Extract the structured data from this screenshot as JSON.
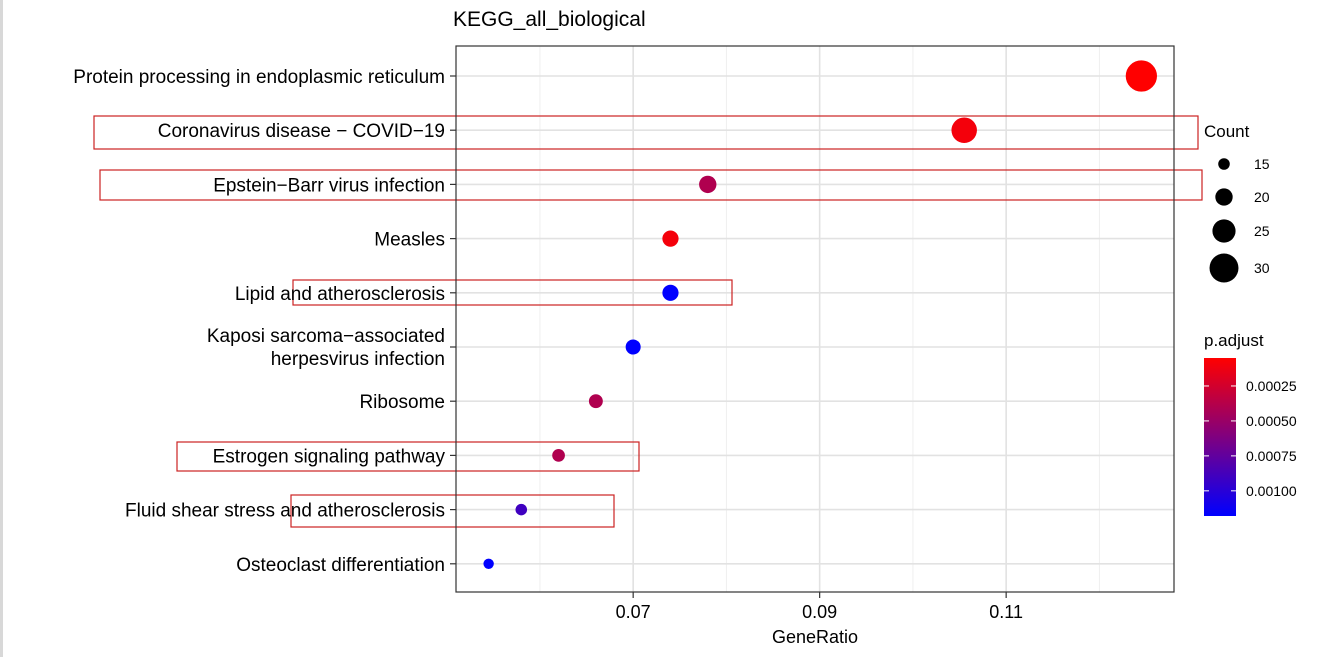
{
  "chart_data": {
    "type": "scatter",
    "title": "KEGG_all_biological",
    "xlabel": "GeneRatio",
    "ylabel": "",
    "xlim": [
      0.051,
      0.128
    ],
    "x_ticks": [
      "0.07",
      "0.09",
      "0.11"
    ],
    "x_tick_values": [
      0.07,
      0.09,
      0.11
    ],
    "grid": true,
    "legend_position": "right",
    "points": [
      {
        "term": "Protein processing in endoplasmic reticulum",
        "gene_ratio": 0.1245,
        "count": 32,
        "p_adjust": 5e-05,
        "highlighted": false
      },
      {
        "term": "Coronavirus disease − COVID−19",
        "gene_ratio": 0.1055,
        "count": 27,
        "p_adjust": 0.0001,
        "highlighted": true
      },
      {
        "term": "Epstein−Barr virus infection",
        "gene_ratio": 0.078,
        "count": 20,
        "p_adjust": 0.0004,
        "highlighted": true
      },
      {
        "term": "Measles",
        "gene_ratio": 0.074,
        "count": 19,
        "p_adjust": 0.0001,
        "highlighted": false
      },
      {
        "term": "Lipid and atherosclerosis",
        "gene_ratio": 0.074,
        "count": 19,
        "p_adjust": 0.00118,
        "highlighted": true
      },
      {
        "term": "Kaposi sarcoma−associated herpesvirus infection",
        "gene_ratio": 0.07,
        "count": 18,
        "p_adjust": 0.00118,
        "highlighted": false
      },
      {
        "term": "Ribosome",
        "gene_ratio": 0.066,
        "count": 17,
        "p_adjust": 0.0004,
        "highlighted": false
      },
      {
        "term": "Estrogen signaling pathway",
        "gene_ratio": 0.062,
        "count": 16,
        "p_adjust": 0.0004,
        "highlighted": true
      },
      {
        "term": "Fluid shear stress and atherosclerosis",
        "gene_ratio": 0.058,
        "count": 15,
        "p_adjust": 0.0009,
        "highlighted": true
      },
      {
        "term": "Osteoclast differentiation",
        "gene_ratio": 0.0545,
        "count": 14,
        "p_adjust": 0.00118,
        "highlighted": false
      }
    ],
    "size_legend": {
      "title": "Count",
      "values": [
        15,
        20,
        25,
        30
      ],
      "labels": [
        "15",
        "20",
        "25",
        "30"
      ]
    },
    "color_legend": {
      "title": "p.adjust",
      "labels": [
        "0.00025",
        "0.00050",
        "0.00075",
        "0.00100"
      ],
      "values": [
        0.00025,
        0.0005,
        0.00075,
        0.001
      ],
      "low_color": "#ff0000",
      "high_color": "#0000ff",
      "range": [
        5e-05,
        0.00118
      ]
    },
    "highlight_box_color": "#cc2222"
  }
}
